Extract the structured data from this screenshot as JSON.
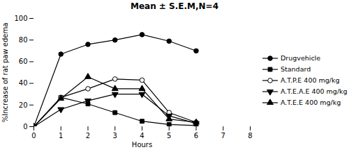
{
  "chart_data": {
    "type": "line",
    "title": "Mean ± S.E.M,N=4",
    "x_label": "Hours",
    "y_label": "%Increase of rat paw edema",
    "x": [
      0,
      1,
      2,
      3,
      4,
      5,
      6
    ],
    "xlim": [
      0,
      8
    ],
    "ylim": [
      0,
      100
    ],
    "xticks": [
      0,
      1,
      2,
      3,
      4,
      5,
      6,
      7,
      8
    ],
    "yticks": [
      0,
      20,
      40,
      60,
      80,
      100
    ],
    "grid": false,
    "legend": "right",
    "series": [
      {
        "name": "Drugvehicle",
        "color": "black",
        "marker": "circle",
        "values": [
          0,
          67,
          76,
          80,
          85,
          79,
          70
        ]
      },
      {
        "name": "Standard",
        "color": "black",
        "marker": "square",
        "values": [
          0,
          27,
          21,
          13,
          5,
          2,
          1
        ]
      },
      {
        "name": "A.T.P.E 400 mg/kg",
        "color": "black",
        "marker": "circle-open",
        "values": [
          0,
          27,
          35,
          44,
          43,
          13,
          4
        ]
      },
      {
        "name": "A.T.E.A.E 400 mg/kg",
        "color": "black",
        "marker": "triangle-down",
        "values": [
          0,
          16,
          24,
          30,
          30,
          10,
          3
        ]
      },
      {
        "name": "A.T.E.E 400 mg/kg",
        "color": "black",
        "marker": "triangle-up",
        "values": [
          0,
          26,
          46,
          35,
          35,
          7,
          4
        ]
      }
    ]
  }
}
